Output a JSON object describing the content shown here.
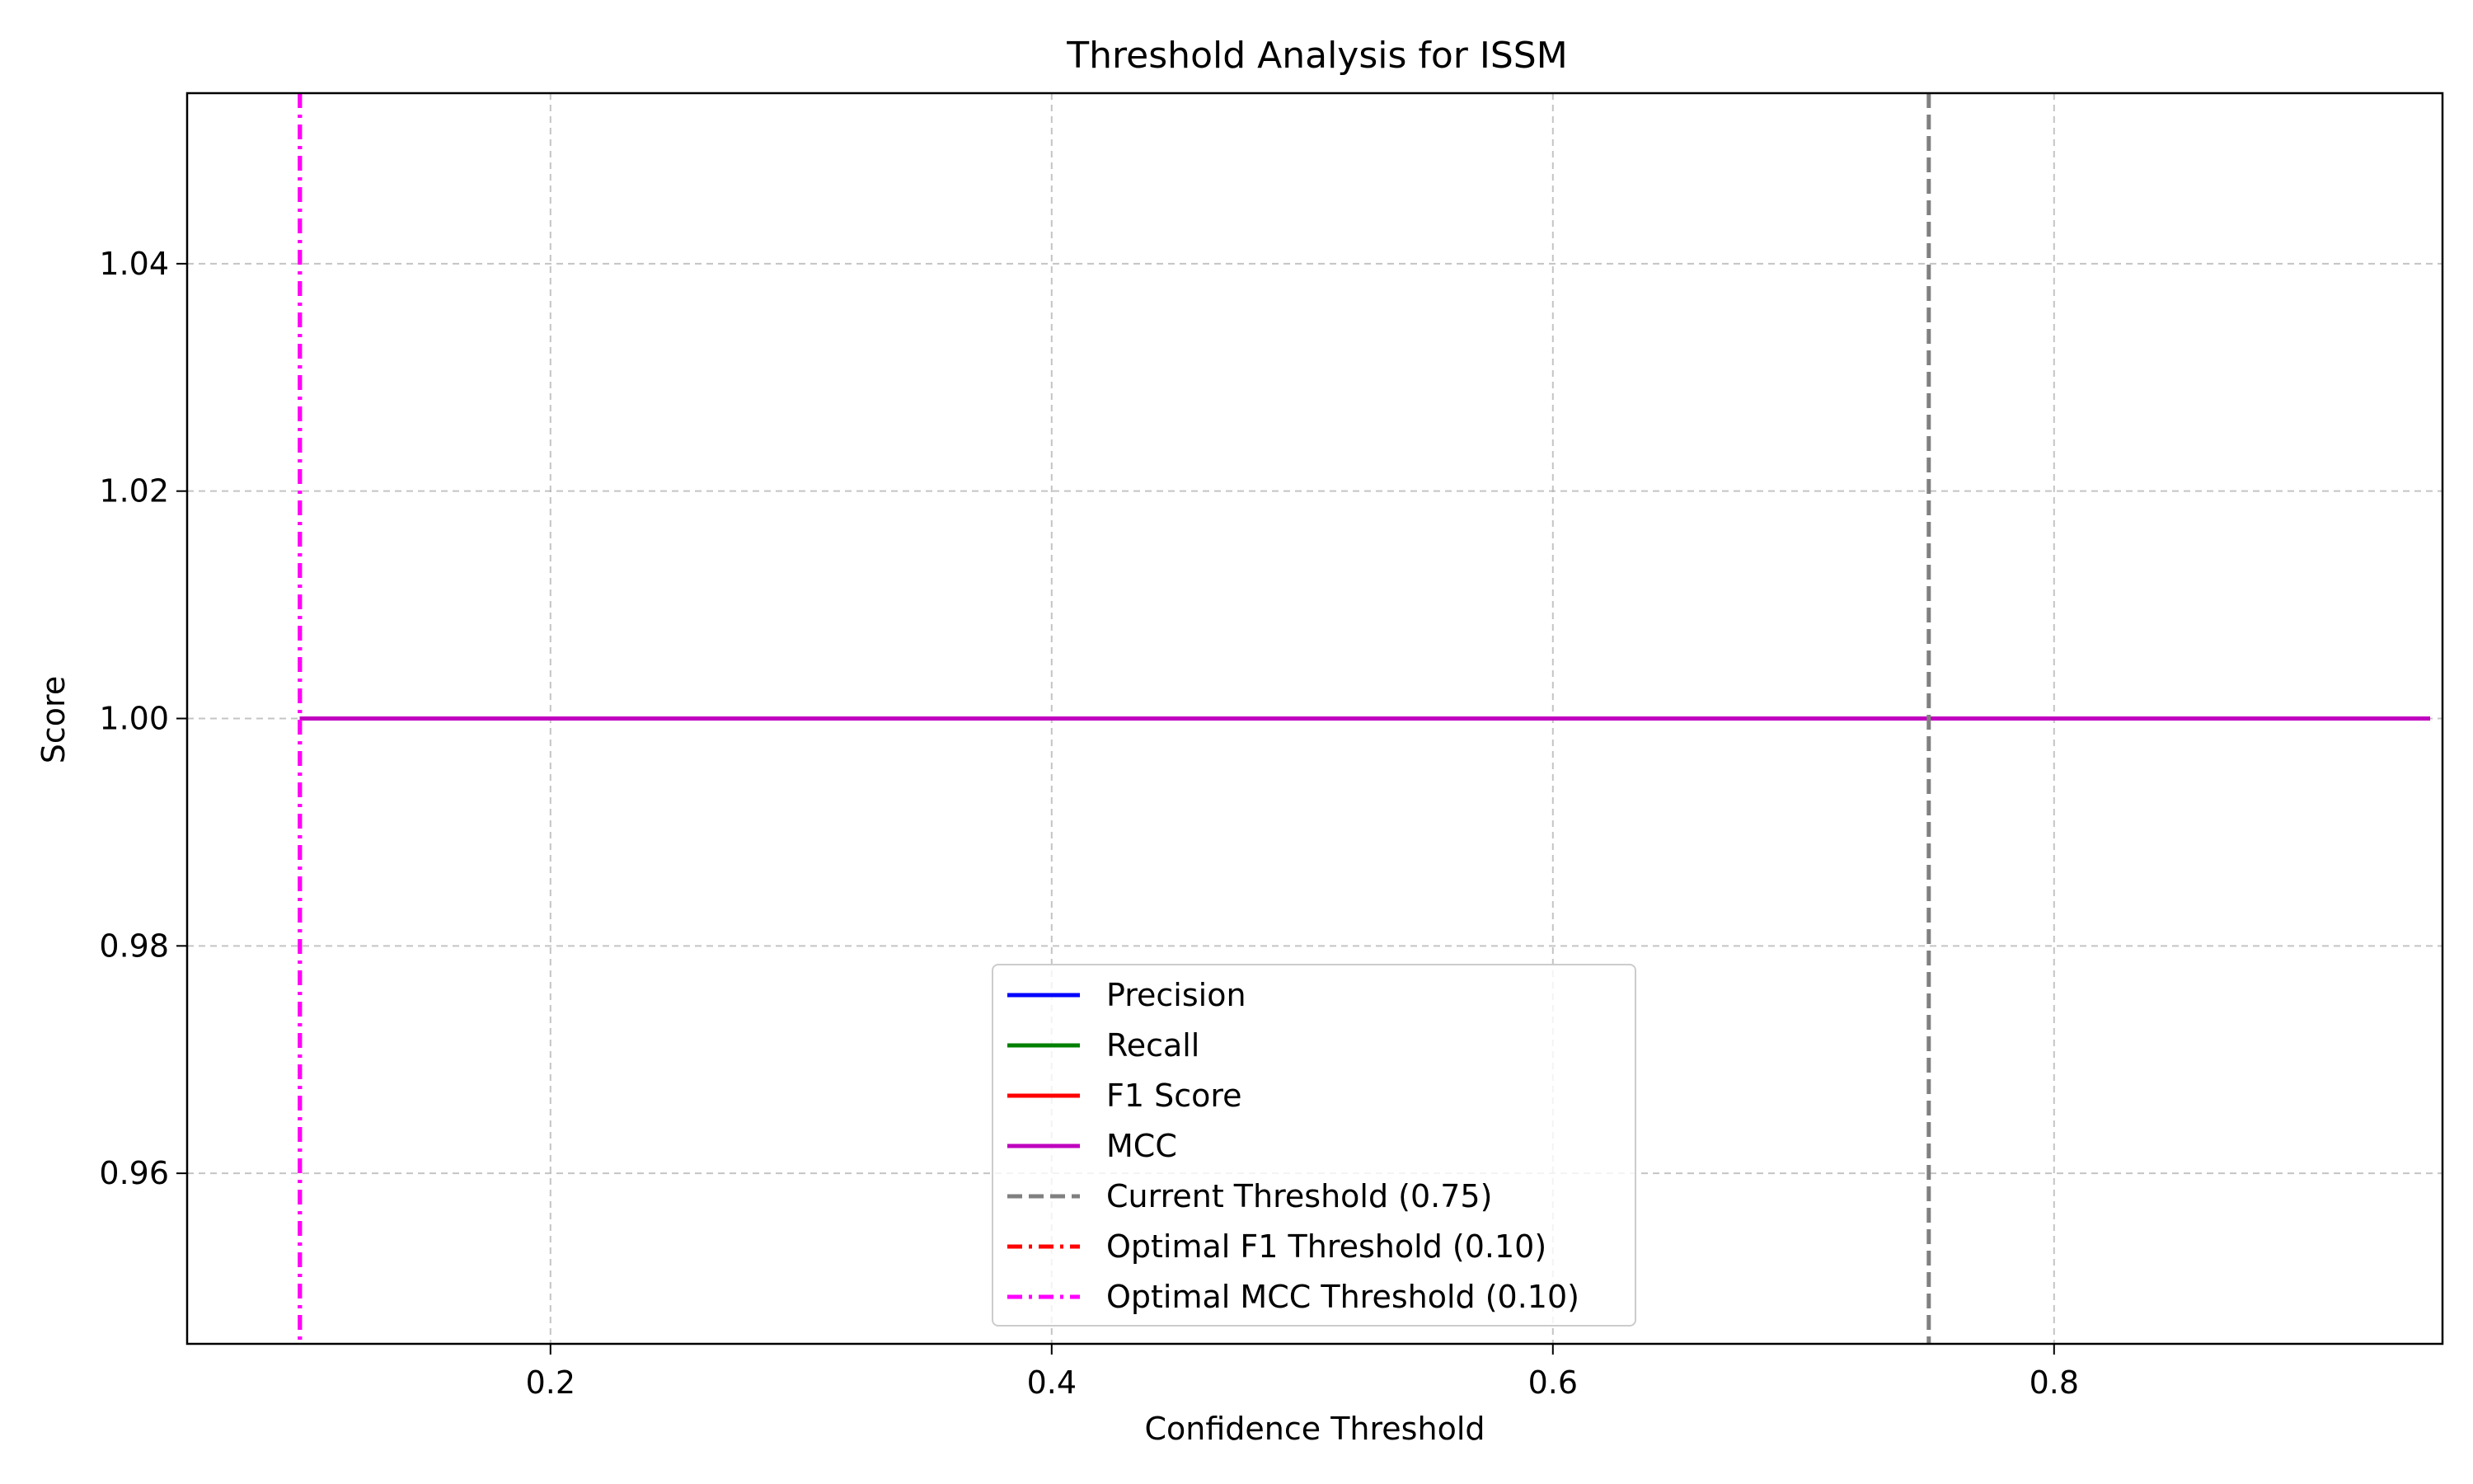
{
  "chart_data": {
    "type": "line",
    "title": "Threshold Analysis for ISSM",
    "xlabel": "Confidence Threshold",
    "ylabel": "Score",
    "xlim": [
      0.055,
      0.955
    ],
    "ylim": [
      0.945,
      1.055
    ],
    "xticks": [
      0.2,
      0.4,
      0.6,
      0.8
    ],
    "xtick_labels": [
      "0.2",
      "0.4",
      "0.6",
      "0.8"
    ],
    "yticks": [
      0.96,
      0.98,
      1.0,
      1.02,
      1.04
    ],
    "ytick_labels": [
      "0.96",
      "0.98",
      "1.00",
      "1.02",
      "1.04"
    ],
    "grid": true,
    "legend_position": "lower-center",
    "series": [
      {
        "name": "Precision",
        "color": "#0000ff",
        "style": "solid",
        "x": [
          0.1,
          0.95
        ],
        "y": [
          1.0,
          1.0
        ]
      },
      {
        "name": "Recall",
        "color": "#008000",
        "style": "solid",
        "x": [
          0.1,
          0.95
        ],
        "y": [
          1.0,
          1.0
        ]
      },
      {
        "name": "F1 Score",
        "color": "#ff0000",
        "style": "solid",
        "x": [
          0.1,
          0.95
        ],
        "y": [
          1.0,
          1.0
        ]
      },
      {
        "name": "MCC",
        "color": "#bf00bf",
        "style": "solid",
        "x": [
          0.1,
          0.95
        ],
        "y": [
          1.0,
          1.0
        ]
      }
    ],
    "vlines": [
      {
        "name": "Current Threshold (0.75)",
        "x": 0.75,
        "color": "#808080",
        "style": "dashed"
      },
      {
        "name": "Optimal F1 Threshold (0.10)",
        "x": 0.1,
        "color": "#ff0000",
        "style": "dashdot"
      },
      {
        "name": "Optimal MCC Threshold (0.10)",
        "x": 0.1,
        "color": "#ff00ff",
        "style": "dashdot"
      }
    ]
  }
}
